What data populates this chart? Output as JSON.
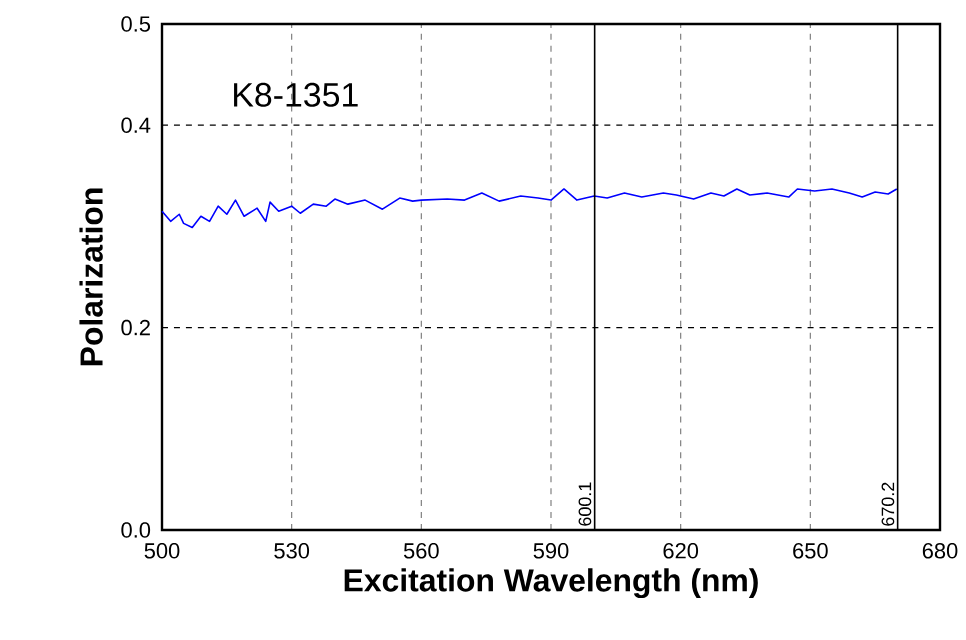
{
  "chart_data": {
    "type": "line",
    "xlabel": "Excitation Wavelength (nm)",
    "ylabel": "Polarization",
    "annotations": [
      "K8-1351"
    ],
    "x": [
      500,
      502,
      504,
      505,
      507,
      509,
      511,
      513,
      515,
      517,
      519,
      522,
      524,
      525,
      527,
      530,
      532,
      535,
      538,
      540,
      543,
      547,
      551,
      555,
      558,
      560,
      566,
      570,
      574,
      578,
      583,
      587,
      590,
      593,
      596,
      600,
      603,
      607,
      611,
      616,
      619,
      623,
      627,
      630,
      633,
      636,
      640,
      645,
      647,
      651,
      655,
      659,
      662,
      665,
      668,
      670
    ],
    "series": [
      {
        "color": "#0000ff",
        "values": [
          0.315,
          0.305,
          0.312,
          0.303,
          0.299,
          0.31,
          0.305,
          0.32,
          0.312,
          0.326,
          0.31,
          0.318,
          0.305,
          0.324,
          0.315,
          0.32,
          0.313,
          0.322,
          0.32,
          0.327,
          0.322,
          0.326,
          0.317,
          0.328,
          0.325,
          0.326,
          0.327,
          0.326,
          0.333,
          0.325,
          0.33,
          0.328,
          0.326,
          0.337,
          0.326,
          0.33,
          0.328,
          0.333,
          0.329,
          0.333,
          0.331,
          0.327,
          0.333,
          0.33,
          0.337,
          0.331,
          0.333,
          0.329,
          0.337,
          0.335,
          0.337,
          0.333,
          0.329,
          0.334,
          0.332,
          0.337
        ]
      }
    ],
    "xlim": [
      500,
      680
    ],
    "ylim": [
      0,
      0.5
    ],
    "xticks": [
      500,
      530,
      560,
      590,
      620,
      650,
      680
    ],
    "yticks": [
      {
        "value": 0,
        "label": "0.0"
      },
      {
        "value": 0.2,
        "label": "0.2"
      },
      {
        "value": 0.4,
        "label": "0.4"
      },
      {
        "value": 0.5,
        "label": "0.5"
      }
    ],
    "grid": true,
    "marker": "none",
    "line_style": "solid",
    "ref_lines": [
      {
        "axis": "x",
        "value": 600.1,
        "label": "600.1",
        "color": "#000000"
      },
      {
        "axis": "x",
        "value": 670.2,
        "label": "670.2",
        "color": "#000000"
      }
    ]
  }
}
